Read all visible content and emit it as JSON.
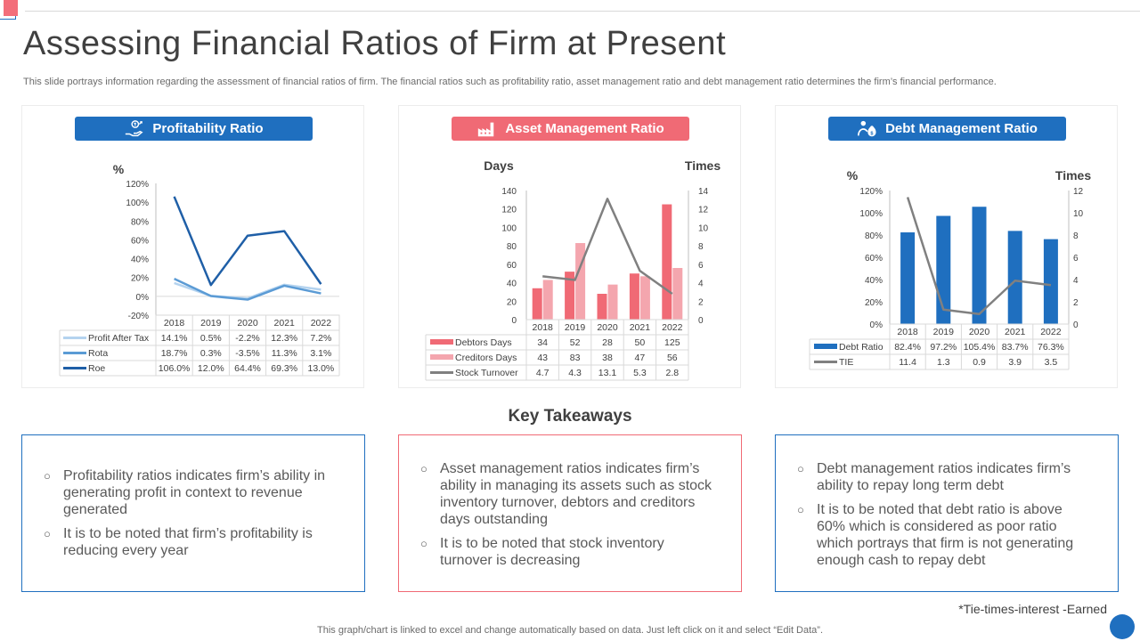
{
  "page": {
    "title": "Assessing Financial Ratios of Firm at Present",
    "subtitle": "This slide portrays information regarding the assessment of financial ratios of firm. The financial ratios such as profitability ratio, asset management ratio and debt management ratio determines the firm’s financial performance.",
    "key_takeaways_title": "Key Takeaways",
    "footnote": "*Tie-times-interest -Earned",
    "bottom_note": "This graph/chart is linked to excel and change automatically based on data. Just left click on it and select “Edit Data”."
  },
  "colors": {
    "blue": "#1f6fbf",
    "pink": "#f06a75",
    "light_blue": "#9dc3e6",
    "mid_blue": "#5b9bd5",
    "dark_blue": "#1f5fa7",
    "light_pink": "#f4a6ae",
    "gray": "#808080"
  },
  "panels": {
    "profitability": {
      "header": "Profitability Ratio",
      "icon": "hand-coin-growth-icon"
    },
    "asset": {
      "header": "Asset Management Ratio",
      "icon": "factory-icon"
    },
    "debt": {
      "header": "Debt Management Ratio",
      "icon": "money-bag-person-icon"
    }
  },
  "chart_data": [
    {
      "type": "line",
      "title": "Profitability Ratio",
      "ylabel": "%",
      "categories": [
        "2018",
        "2019",
        "2020",
        "2021",
        "2022"
      ],
      "ylim": [
        -20,
        120
      ],
      "yticks": [
        -20,
        0,
        20,
        40,
        60,
        80,
        100,
        120
      ],
      "ytick_labels": [
        "-20%",
        "0%",
        "20%",
        "40%",
        "60%",
        "80%",
        "100%",
        "120%"
      ],
      "series": [
        {
          "name": "Profit After Tax",
          "values": [
            14.1,
            0.5,
            -2.2,
            12.3,
            7.2
          ],
          "labels": [
            "14.1%",
            "0.5%",
            "-2.2%",
            "12.3%",
            "7.2%"
          ],
          "color": "#b4d3ef"
        },
        {
          "name": "Rota",
          "values": [
            18.7,
            0.3,
            -3.5,
            11.3,
            3.1
          ],
          "labels": [
            "18.7%",
            "0.3%",
            "-3.5%",
            "11.3%",
            "3.1%"
          ],
          "color": "#5b9bd5"
        },
        {
          "name": "Roe",
          "values": [
            106.0,
            12.0,
            64.4,
            69.3,
            13.0
          ],
          "labels": [
            "106.0%",
            "12.0%",
            "64.4%",
            "69.3%",
            "13.0%"
          ],
          "color": "#1f5fa7"
        }
      ],
      "legend": "table-below",
      "grid": false
    },
    {
      "type": "bar",
      "title": "Asset Management Ratio",
      "ylabel": "Days",
      "y2label": "Times",
      "categories": [
        "2018",
        "2019",
        "2020",
        "2021",
        "2022"
      ],
      "ylim": [
        0,
        140
      ],
      "yticks": [
        0,
        20,
        40,
        60,
        80,
        100,
        120,
        140
      ],
      "y2lim": [
        0,
        14
      ],
      "y2ticks": [
        0,
        2,
        4,
        6,
        8,
        10,
        12,
        14
      ],
      "series": [
        {
          "name": "Debtors Days",
          "kind": "bar",
          "axis": "left",
          "values": [
            34,
            52,
            28,
            50,
            125
          ],
          "color": "#f06a75"
        },
        {
          "name": "Creditors Days",
          "kind": "bar",
          "axis": "left",
          "values": [
            43,
            83,
            38,
            47,
            56
          ],
          "color": "#f4a6ae"
        },
        {
          "name": "Stock Turnover",
          "kind": "line",
          "axis": "right",
          "values": [
            4.7,
            4.3,
            13.1,
            5.3,
            2.8
          ],
          "color": "#808080"
        }
      ],
      "legend": "table-below",
      "grid": false
    },
    {
      "type": "bar",
      "title": "Debt Management Ratio",
      "ylabel": "%",
      "y2label": "Times",
      "categories": [
        "2018",
        "2019",
        "2020",
        "2021",
        "2022"
      ],
      "ylim": [
        0,
        120
      ],
      "yticks": [
        0,
        20,
        40,
        60,
        80,
        100,
        120
      ],
      "ytick_labels": [
        "0%",
        "20%",
        "40%",
        "60%",
        "80%",
        "100%",
        "120%"
      ],
      "y2lim": [
        0,
        12
      ],
      "y2ticks": [
        0,
        2,
        4,
        6,
        8,
        10,
        12
      ],
      "series": [
        {
          "name": "Debt Ratio",
          "kind": "bar",
          "axis": "left",
          "values": [
            82.4,
            97.2,
            105.4,
            83.7,
            76.3
          ],
          "labels": [
            "82.4%",
            "97.2%",
            "105.4%",
            "83.7%",
            "76.3%"
          ],
          "color": "#1f6fbf"
        },
        {
          "name": "TIE",
          "kind": "line",
          "axis": "right",
          "values": [
            11.4,
            1.3,
            0.9,
            3.9,
            3.5
          ],
          "color": "#808080"
        }
      ],
      "legend": "table-below",
      "grid": false
    }
  ],
  "takeaways": [
    {
      "border": "#1f6fbf",
      "items": [
        "Profitability ratios indicates firm’s ability in generating profit in context to revenue  generated",
        "It is to be noted that firm’s profitability is reducing every year"
      ]
    },
    {
      "border": "#f06a75",
      "items": [
        "Asset management ratios indicates firm’s ability in managing its assets such as stock inventory turnover,  debtors and creditors days outstanding",
        "It is to be noted that stock inventory turnover is decreasing"
      ]
    },
    {
      "border": "#1f6fbf",
      "items": [
        "Debt management ratios indicates firm’s ability to repay long term debt",
        "It is to be noted that debt ratio is above 60% which is considered as poor ratio which portrays that firm is not generating enough cash to repay debt"
      ]
    }
  ]
}
